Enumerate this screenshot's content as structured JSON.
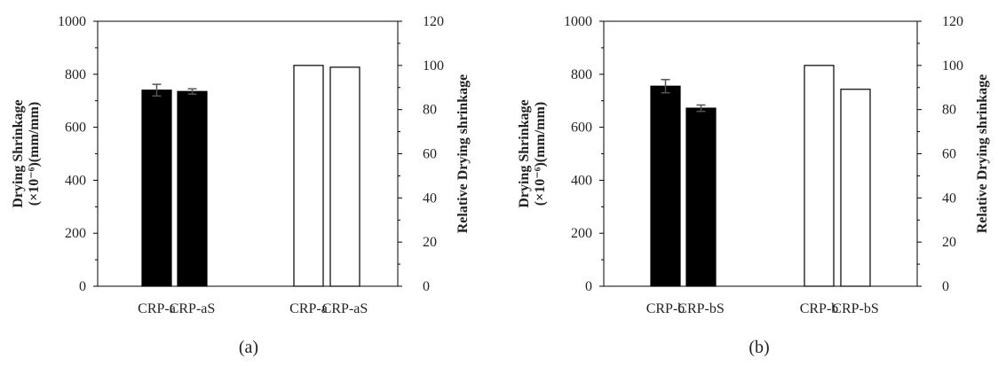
{
  "chart_data": [
    {
      "type": "bar",
      "panel_label": "(a)",
      "ylabel_left_line1": "Drying Shrinkage",
      "ylabel_left_line2": "(×10⁻⁶)(mm/mm)",
      "ylabel_right": "Relative Drying shrinkage",
      "ylim_left": [
        0,
        1000
      ],
      "ylim_right": [
        0,
        120
      ],
      "left_ticks": [
        "0",
        "200",
        "400",
        "600",
        "800",
        "1000"
      ],
      "right_ticks": [
        "0",
        "20",
        "40",
        "60",
        "80",
        "100",
        "120"
      ],
      "series": [
        {
          "axis": "left",
          "fill": "#000000",
          "categories": [
            "CRP-a",
            "CRP-aS"
          ],
          "values": [
            740,
            735
          ],
          "errors": [
            22,
            10
          ]
        },
        {
          "axis": "right",
          "fill": "#ffffff",
          "categories": [
            "CRP-a",
            "CRP-aS"
          ],
          "values": [
            100,
            99.2
          ]
        }
      ]
    },
    {
      "type": "bar",
      "panel_label": "(b)",
      "ylabel_left_line1": "Drying Shrinkage",
      "ylabel_left_line2": "(×10⁻⁶)(mm/mm)",
      "ylabel_right": "Relative Drying shrinkage",
      "ylim_left": [
        0,
        1000
      ],
      "ylim_right": [
        0,
        120
      ],
      "left_ticks": [
        "0",
        "200",
        "400",
        "600",
        "800",
        "1000"
      ],
      "right_ticks": [
        "0",
        "20",
        "40",
        "60",
        "80",
        "100",
        "120"
      ],
      "series": [
        {
          "axis": "left",
          "fill": "#000000",
          "categories": [
            "CRP-b",
            "CRP-bS"
          ],
          "values": [
            755,
            672
          ],
          "errors": [
            25,
            12
          ]
        },
        {
          "axis": "right",
          "fill": "#ffffff",
          "categories": [
            "CRP-b",
            "CRP-bS"
          ],
          "values": [
            100,
            89.2
          ]
        }
      ]
    }
  ]
}
